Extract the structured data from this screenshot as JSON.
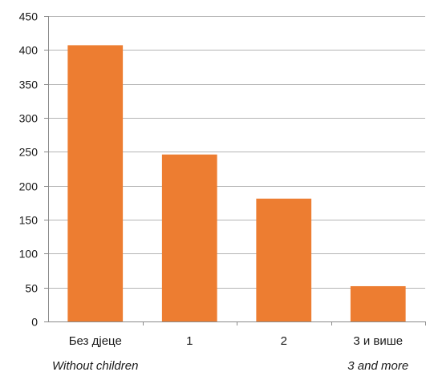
{
  "chart_data": {
    "type": "bar",
    "categories": [
      "Без дјеце",
      "1",
      "2",
      "3 и више"
    ],
    "categories_sub": [
      "Without children",
      "",
      "",
      "3 and more"
    ],
    "values": [
      407,
      246,
      181,
      52
    ],
    "ylim": [
      0,
      450
    ],
    "yticks": [
      "0",
      "50",
      "100",
      "150",
      "200",
      "250",
      "300",
      "350",
      "400",
      "450"
    ],
    "grid": true,
    "bar_color": "#ED7D31",
    "title": "",
    "xlabel": "",
    "ylabel": ""
  }
}
